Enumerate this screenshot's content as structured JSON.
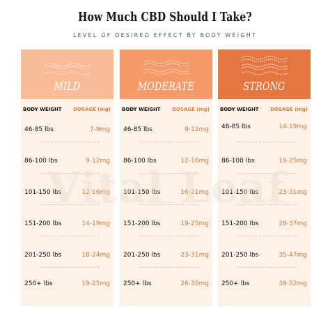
{
  "title": "How Much CBD Should I Take?",
  "subtitle": "LEVEL OF DESIRED EFFECT BY BODY WEIGHT",
  "watermark": "Vital Leaf",
  "colors": {
    "mild_header": "#f9bc97",
    "moderate_header": "#f69a6a",
    "strong_header": "#e6763f",
    "column_bg": "#fcf2e8",
    "dosage_text": "#d6783c"
  },
  "table_headers": {
    "body_weight": "BODY WEIGHT",
    "dosage": "DOSAGE (mg)"
  },
  "columns": [
    {
      "level": "MILD",
      "rows": [
        {
          "weight": "46-85 lbs",
          "dosage": "7-9mg"
        },
        {
          "weight": "86-100 lbs",
          "dosage": "9-12mg"
        },
        {
          "weight": "101-150 lbs",
          "dosage": "12-16mg"
        },
        {
          "weight": "151-200 lbs",
          "dosage": "14-19mg"
        },
        {
          "weight": "201-250 lbs",
          "dosage": "18-24mg"
        },
        {
          "weight": "250+ lbs",
          "dosage": "19-25mg"
        }
      ]
    },
    {
      "level": "MODERATE",
      "rows": [
        {
          "weight": "46-85 lbs",
          "dosage": "9-12mg"
        },
        {
          "weight": "86-100 lbs",
          "dosage": "12-16mg"
        },
        {
          "weight": "101-150 lbs",
          "dosage": "16-21mg"
        },
        {
          "weight": "151-200 lbs",
          "dosage": "19-25mg"
        },
        {
          "weight": "201-250 lbs",
          "dosage": "23-31mg"
        },
        {
          "weight": "250+ lbs",
          "dosage": "26-35mg"
        }
      ]
    },
    {
      "level": "STRONG",
      "rows": [
        {
          "weight": "46-85 lbs",
          "dosage": "14-19mg"
        },
        {
          "weight": "86-100 lbs",
          "dosage": "19-25mg"
        },
        {
          "weight": "101-150 lbs",
          "dosage": "23-31mg"
        },
        {
          "weight": "151-200 lbs",
          "dosage": "28-37mg"
        },
        {
          "weight": "201-250 lbs",
          "dosage": "35-47mg"
        },
        {
          "weight": "250+ lbs",
          "dosage": "39-52mg"
        }
      ]
    }
  ]
}
